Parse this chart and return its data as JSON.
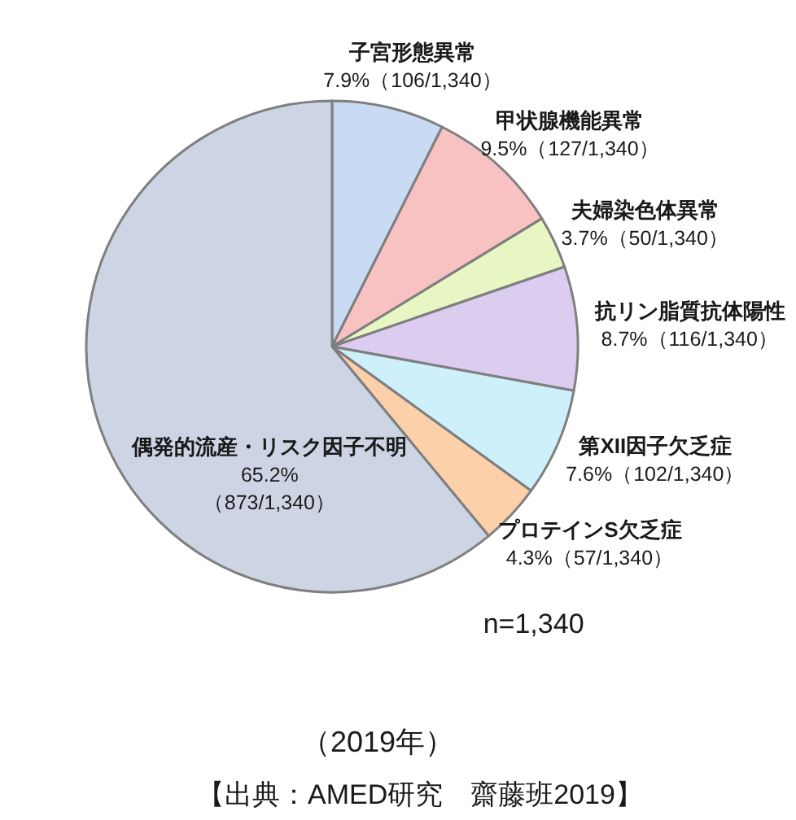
{
  "chart_data": {
    "type": "pie",
    "categories": [
      "子宮形態異常",
      "甲状腺機能異常",
      "夫婦染色体異常",
      "抗リン脂質抗体陽性",
      "第XII因子欠乏症",
      "プロテインS欠乏症",
      "偶発的流産・リスク因子不明"
    ],
    "values": [
      7.9,
      9.5,
      3.7,
      8.7,
      7.6,
      4.3,
      65.2
    ],
    "value_labels": [
      "7.9%（106/1,340）",
      "9.5%（127/1,340）",
      "3.7%（50/1,340）",
      "8.7%（116/1,340）",
      "7.6%（102/1,340）",
      "4.3%（57/1,340）",
      "65.2%\n（873/1,340）"
    ],
    "colors": [
      "#c9daf5",
      "#f8c2c2",
      "#e8f6c4",
      "#dccdf0",
      "#cdf0fb",
      "#fcd0a8",
      "#cdd4e3"
    ],
    "annotations": [
      "n=1,340",
      "（2019年）",
      "【出典：AMED研究　齋藤班2019】"
    ]
  }
}
